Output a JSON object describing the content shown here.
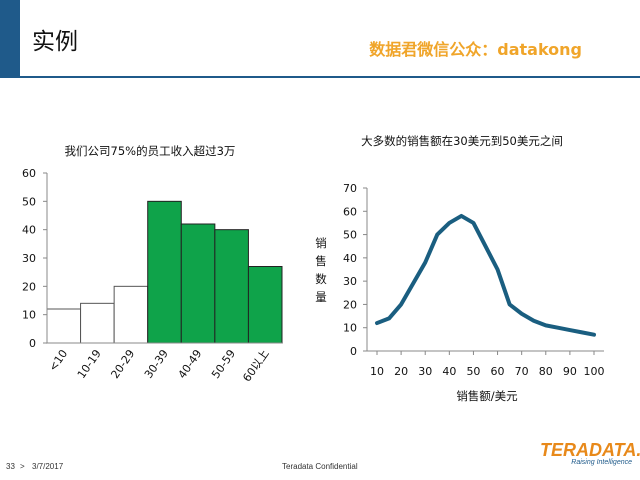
{
  "slide": {
    "title": "实例",
    "watermark": "数据君微信公众：datakong"
  },
  "footer": {
    "page": "33",
    "separator": ">",
    "date": "3/7/2017",
    "confidential": "Teradata Confidential",
    "logo_text": "TERADATA.",
    "logo_tagline": "Raising Intelligence"
  },
  "colors": {
    "accent": "#1f5a8a",
    "bar_highlight": "#0fa34a",
    "bar_plain": "#ffffff",
    "line": "#1a5e80",
    "watermark": "#f0a52a"
  },
  "chart_data": [
    {
      "type": "bar",
      "title": "我们公司75%的员工收入超过3万",
      "categories": [
        "<10",
        "10-19",
        "20-29",
        "30-39",
        "40-49",
        "50-59",
        "60以上"
      ],
      "values": [
        12,
        14,
        20,
        50,
        42,
        40,
        27
      ],
      "highlighted": [
        false,
        false,
        false,
        true,
        true,
        true,
        true
      ],
      "ylim": [
        0,
        60
      ],
      "yticks": [
        0,
        10,
        20,
        30,
        40,
        50,
        60
      ],
      "xlabel": "",
      "ylabel": "",
      "grid": false
    },
    {
      "type": "line",
      "title": "大多数的销售额在30美元到50美元之间",
      "x": [
        10,
        15,
        20,
        30,
        35,
        40,
        45,
        50,
        55,
        60,
        65,
        70,
        75,
        80,
        85,
        90,
        95,
        100
      ],
      "y": [
        12,
        14,
        20,
        38,
        50,
        55,
        58,
        55,
        45,
        35,
        20,
        16,
        13,
        11,
        10,
        9,
        8,
        7
      ],
      "xticks": [
        10,
        20,
        30,
        40,
        50,
        60,
        70,
        80,
        90,
        100
      ],
      "yticks": [
        0,
        10,
        20,
        30,
        40,
        50,
        60,
        70
      ],
      "xlim": [
        10,
        100
      ],
      "ylim": [
        0,
        70
      ],
      "xlabel": "销售额/美元",
      "ylabel": "销售数量",
      "grid": false
    }
  ]
}
